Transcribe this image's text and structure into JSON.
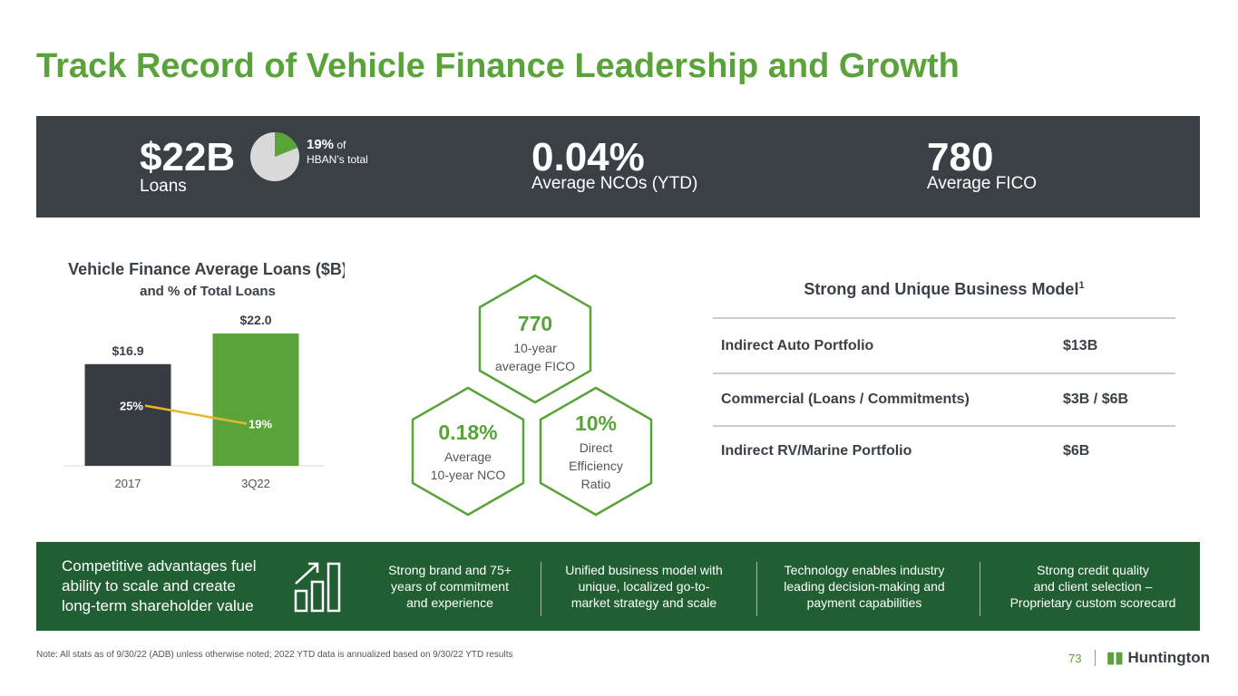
{
  "header": {
    "title": "Track Record of Vehicle Finance Leadership and Growth"
  },
  "banner": {
    "loans": {
      "value": "$22B",
      "label": "Loans",
      "share_value": 19,
      "share_label": "19%",
      "share_suffix": "of",
      "share_caption": "HBAN’s total",
      "share_color": "#5aa33b"
    },
    "nco": {
      "value": "0.04%",
      "label": "Average NCOs (YTD)"
    },
    "fico": {
      "value": "780",
      "label": "Average FICO"
    }
  },
  "chart_data": {
    "type": "bar",
    "title": "Vehicle Finance Average Loans ($B)",
    "subtitle": "and % of Total Loans",
    "categories": [
      "2017",
      "3Q22"
    ],
    "series": [
      {
        "values": [
          16.9,
          22.0
        ],
        "value_labels": [
          "$16.9",
          "$22.0"
        ],
        "colors": [
          "#373c43",
          "#5aa33b"
        ]
      },
      {
        "type": "line",
        "axis": "y2",
        "values": [
          25,
          19
        ],
        "value_labels": [
          "25%",
          "19%"
        ],
        "color": "#e8b62c"
      }
    ],
    "ylim": [
      0,
      25
    ],
    "y2lim": [
      5,
      55
    ]
  },
  "hexagons": [
    {
      "value": "770",
      "lines": [
        "10-year",
        "average FICO"
      ]
    },
    {
      "value": "0.18%",
      "lines": [
        "Average",
        "10-year NCO"
      ]
    },
    {
      "value": "10%",
      "lines": [
        "Direct",
        "Efficiency",
        "Ratio"
      ]
    }
  ],
  "table": {
    "title": "Strong and Unique Business Model",
    "footnote_mark": "1",
    "rows": [
      [
        "Indirect Auto Portfolio",
        "$13B"
      ],
      [
        "Commercial (Loans / Commitments)",
        "$3B / $6B"
      ],
      [
        "Indirect RV/Marine Portfolio",
        "$6B"
      ]
    ]
  },
  "advantages": {
    "lead": [
      "Competitive advantages fuel",
      "ability to scale and create",
      "long-term shareholder value"
    ],
    "items": [
      [
        "Strong brand and 75+",
        "years of commitment",
        "and experience"
      ],
      [
        "Unified business model with",
        "unique, localized go-to-",
        "market strategy and scale"
      ],
      [
        "Technology enables industry",
        "leading decision-making and",
        "payment capabilities"
      ],
      [
        "Strong credit quality",
        "and client selection –",
        "Proprietary custom scorecard"
      ]
    ]
  },
  "footer": {
    "note": "Note: All stats as of 9/30/22 (ADB) unless otherwise noted; 2022 YTD data is annualized based on 9/30/22 YTD results",
    "page": "73",
    "logo": "Huntington"
  }
}
